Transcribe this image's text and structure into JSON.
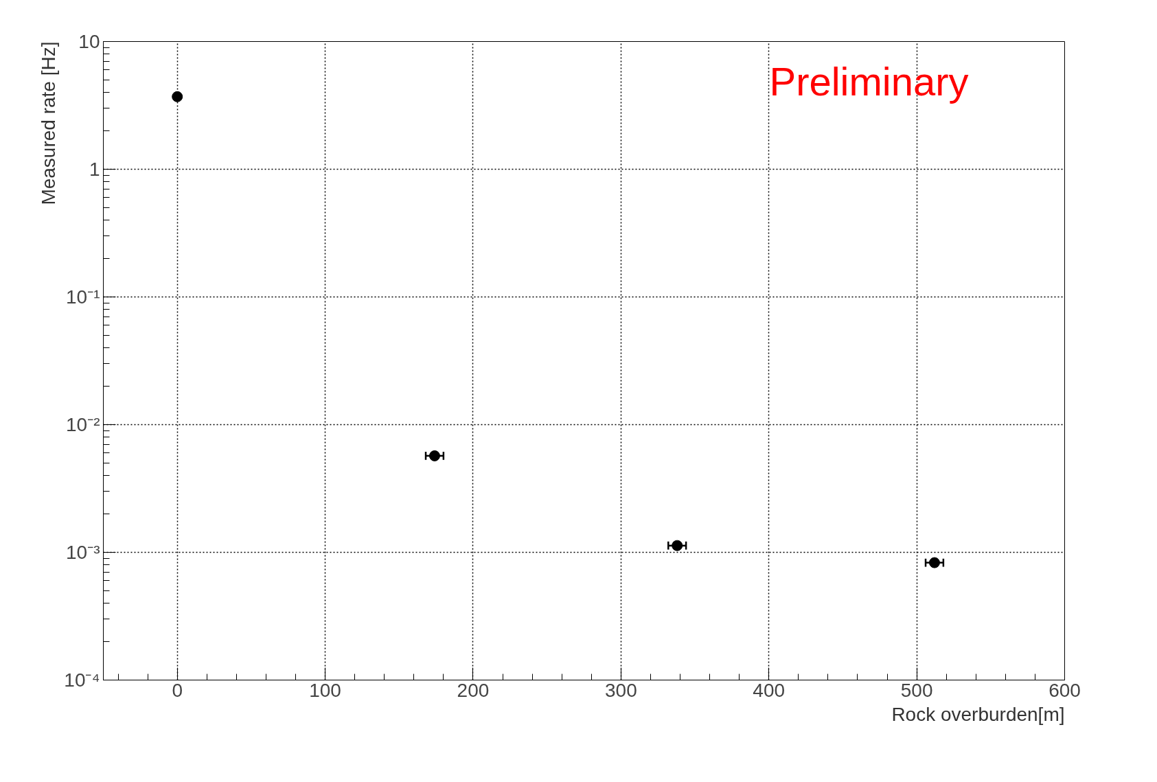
{
  "chart_data": {
    "type": "scatter",
    "xlabel": "Rock overburden[m]",
    "ylabel": "Measured rate [Hz]",
    "x": [
      0,
      174,
      338,
      512
    ],
    "series": [
      {
        "color": "#000000",
        "values": [
          3.7,
          0.0057,
          0.00113,
          0.00083
        ],
        "xerrors": [
          null,
          6,
          6,
          6
        ]
      }
    ],
    "xlim": [
      -50,
      600
    ],
    "xticks": [
      0,
      100,
      200,
      300,
      400,
      500,
      600
    ],
    "ylim": [
      0.0001,
      10
    ],
    "yticks": [
      {
        "value": 0.0001,
        "label": "10⁻⁴"
      },
      {
        "value": 0.001,
        "label": "10⁻³"
      },
      {
        "value": 0.01,
        "label": "10⁻²"
      },
      {
        "value": 0.1,
        "label": "10⁻¹"
      },
      1,
      10
    ],
    "log": "y",
    "grid": true,
    "marker": "circle",
    "annotations": [
      "Preliminary"
    ]
  }
}
